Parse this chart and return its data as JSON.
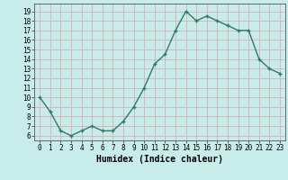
{
  "x": [
    0,
    1,
    2,
    3,
    4,
    5,
    6,
    7,
    8,
    9,
    10,
    11,
    12,
    13,
    14,
    15,
    16,
    17,
    18,
    19,
    20,
    21,
    22,
    23
  ],
  "y": [
    10,
    8.5,
    6.5,
    6.0,
    6.5,
    7.0,
    6.5,
    6.5,
    7.5,
    9.0,
    11.0,
    13.5,
    14.5,
    17.0,
    19.0,
    18.0,
    18.5,
    18.0,
    17.5,
    17.0,
    17.0,
    14.0,
    13.0,
    12.5
  ],
  "line_color": "#2d7a6e",
  "marker": "+",
  "markersize": 3.5,
  "markeredgewidth": 1.0,
  "linewidth": 1.0,
  "bg_color": "#c8ecea",
  "grid_color": "#d8b0b0",
  "xlabel": "Humidex (Indice chaleur)",
  "xlim": [
    -0.5,
    23.5
  ],
  "ylim": [
    5.5,
    19.8
  ],
  "yticks": [
    6,
    7,
    8,
    9,
    10,
    11,
    12,
    13,
    14,
    15,
    16,
    17,
    18,
    19
  ],
  "xticks": [
    0,
    1,
    2,
    3,
    4,
    5,
    6,
    7,
    8,
    9,
    10,
    11,
    12,
    13,
    14,
    15,
    16,
    17,
    18,
    19,
    20,
    21,
    22,
    23
  ],
  "tick_fontsize": 5.5,
  "label_fontsize": 7.0
}
